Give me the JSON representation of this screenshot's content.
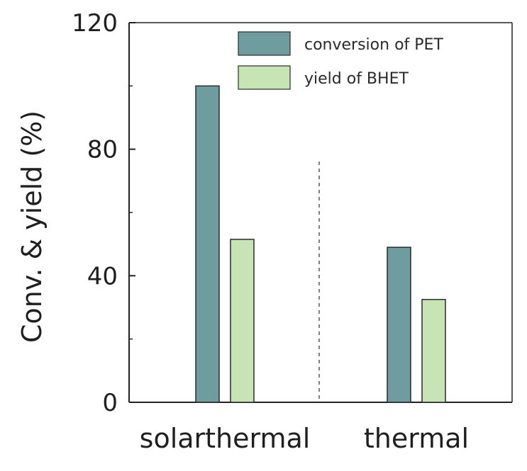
{
  "chart_data": {
    "type": "bar",
    "categories": [
      "solarthermal",
      "thermal"
    ],
    "series": [
      {
        "name": "conversion of PET",
        "values": [
          100,
          49
        ],
        "color": "#6f9c9f"
      },
      {
        "name": "yield of BHET",
        "values": [
          51.5,
          32.5
        ],
        "color": "#c7e4b5"
      }
    ],
    "ylabel": "Conv. & yield (%)",
    "xlabel": "",
    "ylim": [
      0,
      120
    ],
    "yticks": [
      "0",
      "40",
      "80",
      "120"
    ],
    "legend_position": "top-right",
    "grid": false,
    "separator": "dashed vertical line between categories"
  }
}
